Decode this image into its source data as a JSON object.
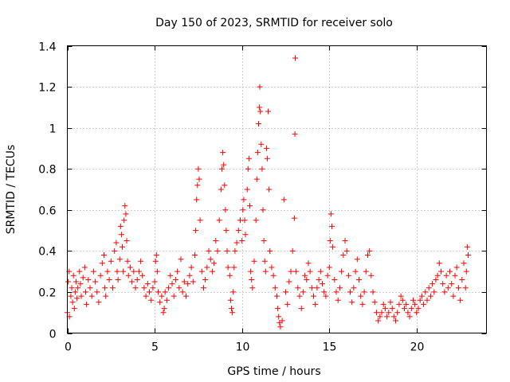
{
  "chart_data": {
    "type": "scatter",
    "title": "Day 150 of 2023, SRMTID for receiver solo",
    "xlabel": "GPS time / hours",
    "ylabel": "SRMTID / TECUs",
    "xlim": [
      0,
      24
    ],
    "ylim": [
      0,
      1.4
    ],
    "xticks": [
      0,
      5,
      10,
      15,
      20
    ],
    "yticks": [
      0,
      0.2,
      0.4,
      0.6,
      0.8,
      1,
      1.2,
      1.4
    ],
    "xtick_labels": [
      "0",
      "5",
      "10",
      "15",
      "20"
    ],
    "ytick_labels": [
      "0",
      "0.2",
      "0.4",
      "0.6",
      "0.8",
      "1",
      "1.2",
      "1.4"
    ],
    "grid": true,
    "marker": "plus",
    "color": "#ff0000",
    "series": [
      {
        "name": "SRMTID",
        "points": [
          [
            0.0,
            0.1
          ],
          [
            0.05,
            0.25
          ],
          [
            0.1,
            0.3
          ],
          [
            0.12,
            0.08
          ],
          [
            0.2,
            0.18
          ],
          [
            0.25,
            0.22
          ],
          [
            0.3,
            0.15
          ],
          [
            0.35,
            0.28
          ],
          [
            0.4,
            0.12
          ],
          [
            0.45,
            0.2
          ],
          [
            0.5,
            0.25
          ],
          [
            0.55,
            0.17
          ],
          [
            0.6,
            0.22
          ],
          [
            0.7,
            0.3
          ],
          [
            0.75,
            0.24
          ],
          [
            0.8,
            0.18
          ],
          [
            0.9,
            0.27
          ],
          [
            1.0,
            0.32
          ],
          [
            1.05,
            0.2
          ],
          [
            1.1,
            0.14
          ],
          [
            1.2,
            0.26
          ],
          [
            1.3,
            0.22
          ],
          [
            1.4,
            0.18
          ],
          [
            1.5,
            0.3
          ],
          [
            1.6,
            0.25
          ],
          [
            1.7,
            0.2
          ],
          [
            1.8,
            0.15
          ],
          [
            1.9,
            0.28
          ],
          [
            2.0,
            0.34
          ],
          [
            2.1,
            0.38
          ],
          [
            2.15,
            0.22
          ],
          [
            2.2,
            0.18
          ],
          [
            2.3,
            0.3
          ],
          [
            2.4,
            0.26
          ],
          [
            2.5,
            0.35
          ],
          [
            2.6,
            0.22
          ],
          [
            2.7,
            0.4
          ],
          [
            2.8,
            0.44
          ],
          [
            2.85,
            0.3
          ],
          [
            2.9,
            0.26
          ],
          [
            3.0,
            0.36
          ],
          [
            3.05,
            0.52
          ],
          [
            3.1,
            0.48
          ],
          [
            3.15,
            0.42
          ],
          [
            3.2,
            0.3
          ],
          [
            3.25,
            0.55
          ],
          [
            3.3,
            0.62
          ],
          [
            3.35,
            0.58
          ],
          [
            3.4,
            0.45
          ],
          [
            3.45,
            0.35
          ],
          [
            3.5,
            0.28
          ],
          [
            3.6,
            0.32
          ],
          [
            3.7,
            0.25
          ],
          [
            3.8,
            0.3
          ],
          [
            3.9,
            0.22
          ],
          [
            4.0,
            0.26
          ],
          [
            4.1,
            0.3
          ],
          [
            4.2,
            0.35
          ],
          [
            4.3,
            0.28
          ],
          [
            4.4,
            0.22
          ],
          [
            4.5,
            0.18
          ],
          [
            4.6,
            0.24
          ],
          [
            4.7,
            0.2
          ],
          [
            4.8,
            0.16
          ],
          [
            4.9,
            0.22
          ],
          [
            5.0,
            0.25
          ],
          [
            5.05,
            0.35
          ],
          [
            5.1,
            0.38
          ],
          [
            5.15,
            0.3
          ],
          [
            5.2,
            0.2
          ],
          [
            5.3,
            0.15
          ],
          [
            5.4,
            0.18
          ],
          [
            5.5,
            0.1
          ],
          [
            5.55,
            0.12
          ],
          [
            5.6,
            0.2
          ],
          [
            5.7,
            0.16
          ],
          [
            5.8,
            0.22
          ],
          [
            5.9,
            0.28
          ],
          [
            6.0,
            0.24
          ],
          [
            6.1,
            0.18
          ],
          [
            6.2,
            0.26
          ],
          [
            6.3,
            0.3
          ],
          [
            6.4,
            0.22
          ],
          [
            6.5,
            0.36
          ],
          [
            6.6,
            0.2
          ],
          [
            6.7,
            0.25
          ],
          [
            6.8,
            0.18
          ],
          [
            6.9,
            0.24
          ],
          [
            7.0,
            0.28
          ],
          [
            7.1,
            0.32
          ],
          [
            7.2,
            0.25
          ],
          [
            7.3,
            0.38
          ],
          [
            7.35,
            0.5
          ],
          [
            7.4,
            0.65
          ],
          [
            7.45,
            0.72
          ],
          [
            7.5,
            0.8
          ],
          [
            7.55,
            0.75
          ],
          [
            7.6,
            0.55
          ],
          [
            7.7,
            0.3
          ],
          [
            7.8,
            0.22
          ],
          [
            7.9,
            0.26
          ],
          [
            8.0,
            0.32
          ],
          [
            8.1,
            0.4
          ],
          [
            8.2,
            0.36
          ],
          [
            8.3,
            0.3
          ],
          [
            8.4,
            0.34
          ],
          [
            8.5,
            0.45
          ],
          [
            8.6,
            0.4
          ],
          [
            8.7,
            0.55
          ],
          [
            8.8,
            0.7
          ],
          [
            8.85,
            0.8
          ],
          [
            8.9,
            0.88
          ],
          [
            8.95,
            0.82
          ],
          [
            9.0,
            0.72
          ],
          [
            9.05,
            0.6
          ],
          [
            9.1,
            0.5
          ],
          [
            9.15,
            0.4
          ],
          [
            9.2,
            0.32
          ],
          [
            9.3,
            0.28
          ],
          [
            9.35,
            0.16
          ],
          [
            9.4,
            0.12
          ],
          [
            9.45,
            0.1
          ],
          [
            9.5,
            0.2
          ],
          [
            9.55,
            0.32
          ],
          [
            9.6,
            0.4
          ],
          [
            9.7,
            0.44
          ],
          [
            9.8,
            0.5
          ],
          [
            9.9,
            0.55
          ],
          [
            10.0,
            0.45
          ],
          [
            10.05,
            0.6
          ],
          [
            10.1,
            0.65
          ],
          [
            10.15,
            0.55
          ],
          [
            10.2,
            0.48
          ],
          [
            10.3,
            0.7
          ],
          [
            10.35,
            0.8
          ],
          [
            10.4,
            0.85
          ],
          [
            10.45,
            0.62
          ],
          [
            10.5,
            0.3
          ],
          [
            10.55,
            0.26
          ],
          [
            10.6,
            0.22
          ],
          [
            10.7,
            0.35
          ],
          [
            10.8,
            0.55
          ],
          [
            10.85,
            0.75
          ],
          [
            10.9,
            0.88
          ],
          [
            10.95,
            1.02
          ],
          [
            11.0,
            1.1
          ],
          [
            11.02,
            1.2
          ],
          [
            11.05,
            1.08
          ],
          [
            11.1,
            0.92
          ],
          [
            11.15,
            0.8
          ],
          [
            11.2,
            0.6
          ],
          [
            11.25,
            0.45
          ],
          [
            11.3,
            0.35
          ],
          [
            11.35,
            0.3
          ],
          [
            11.4,
            0.9
          ],
          [
            11.45,
            0.85
          ],
          [
            11.5,
            1.08
          ],
          [
            11.55,
            0.7
          ],
          [
            11.6,
            0.4
          ],
          [
            11.7,
            0.32
          ],
          [
            11.8,
            0.28
          ],
          [
            11.9,
            0.22
          ],
          [
            12.0,
            0.18
          ],
          [
            12.05,
            0.12
          ],
          [
            12.1,
            0.08
          ],
          [
            12.15,
            0.05
          ],
          [
            12.2,
            0.03
          ],
          [
            12.3,
            0.06
          ],
          [
            12.4,
            0.65
          ],
          [
            12.5,
            0.2
          ],
          [
            12.6,
            0.14
          ],
          [
            12.7,
            0.25
          ],
          [
            12.8,
            0.3
          ],
          [
            12.9,
            0.4
          ],
          [
            13.0,
            0.56
          ],
          [
            13.03,
            0.97
          ],
          [
            13.05,
            1.34
          ],
          [
            13.1,
            0.3
          ],
          [
            13.2,
            0.22
          ],
          [
            13.3,
            0.18
          ],
          [
            13.4,
            0.12
          ],
          [
            13.5,
            0.2
          ],
          [
            13.6,
            0.28
          ],
          [
            13.7,
            0.26
          ],
          [
            13.8,
            0.34
          ],
          [
            13.9,
            0.3
          ],
          [
            14.0,
            0.22
          ],
          [
            14.1,
            0.18
          ],
          [
            14.2,
            0.14
          ],
          [
            14.3,
            0.22
          ],
          [
            14.4,
            0.26
          ],
          [
            14.5,
            0.3
          ],
          [
            14.6,
            0.24
          ],
          [
            14.7,
            0.2
          ],
          [
            14.8,
            0.18
          ],
          [
            14.9,
            0.28
          ],
          [
            15.0,
            0.32
          ],
          [
            15.05,
            0.45
          ],
          [
            15.1,
            0.58
          ],
          [
            15.15,
            0.52
          ],
          [
            15.2,
            0.42
          ],
          [
            15.3,
            0.26
          ],
          [
            15.4,
            0.2
          ],
          [
            15.5,
            0.16
          ],
          [
            15.6,
            0.22
          ],
          [
            15.7,
            0.3
          ],
          [
            15.8,
            0.38
          ],
          [
            15.9,
            0.45
          ],
          [
            16.0,
            0.4
          ],
          [
            16.1,
            0.28
          ],
          [
            16.2,
            0.2
          ],
          [
            16.3,
            0.15
          ],
          [
            16.4,
            0.22
          ],
          [
            16.5,
            0.3
          ],
          [
            16.6,
            0.36
          ],
          [
            16.7,
            0.26
          ],
          [
            16.8,
            0.18
          ],
          [
            16.9,
            0.14
          ],
          [
            17.0,
            0.2
          ],
          [
            17.1,
            0.3
          ],
          [
            17.2,
            0.38
          ],
          [
            17.3,
            0.4
          ],
          [
            17.4,
            0.28
          ],
          [
            17.5,
            0.2
          ],
          [
            17.6,
            0.15
          ],
          [
            17.7,
            0.1
          ],
          [
            17.8,
            0.06
          ],
          [
            17.9,
            0.08
          ],
          [
            18.0,
            0.1
          ],
          [
            18.1,
            0.14
          ],
          [
            18.2,
            0.12
          ],
          [
            18.3,
            0.08
          ],
          [
            18.4,
            0.1
          ],
          [
            18.5,
            0.15
          ],
          [
            18.6,
            0.12
          ],
          [
            18.7,
            0.08
          ],
          [
            18.8,
            0.06
          ],
          [
            18.9,
            0.1
          ],
          [
            19.0,
            0.14
          ],
          [
            19.1,
            0.18
          ],
          [
            19.2,
            0.16
          ],
          [
            19.3,
            0.12
          ],
          [
            19.4,
            0.14
          ],
          [
            19.5,
            0.1
          ],
          [
            19.6,
            0.08
          ],
          [
            19.7,
            0.12
          ],
          [
            19.8,
            0.16
          ],
          [
            19.9,
            0.14
          ],
          [
            20.0,
            0.1
          ],
          [
            20.1,
            0.12
          ],
          [
            20.2,
            0.16
          ],
          [
            20.3,
            0.18
          ],
          [
            20.4,
            0.14
          ],
          [
            20.5,
            0.2
          ],
          [
            20.6,
            0.16
          ],
          [
            20.7,
            0.22
          ],
          [
            20.8,
            0.18
          ],
          [
            20.9,
            0.24
          ],
          [
            21.0,
            0.2
          ],
          [
            21.1,
            0.26
          ],
          [
            21.2,
            0.28
          ],
          [
            21.3,
            0.34
          ],
          [
            21.4,
            0.3
          ],
          [
            21.5,
            0.24
          ],
          [
            21.6,
            0.2
          ],
          [
            21.7,
            0.28
          ],
          [
            21.8,
            0.22
          ],
          [
            21.9,
            0.3
          ],
          [
            22.0,
            0.24
          ],
          [
            22.1,
            0.18
          ],
          [
            22.2,
            0.28
          ],
          [
            22.3,
            0.32
          ],
          [
            22.4,
            0.22
          ],
          [
            22.5,
            0.16
          ],
          [
            22.6,
            0.26
          ],
          [
            22.7,
            0.34
          ],
          [
            22.8,
            0.22
          ],
          [
            22.85,
            0.3
          ],
          [
            22.9,
            0.42
          ],
          [
            22.95,
            0.38
          ]
        ]
      }
    ]
  }
}
